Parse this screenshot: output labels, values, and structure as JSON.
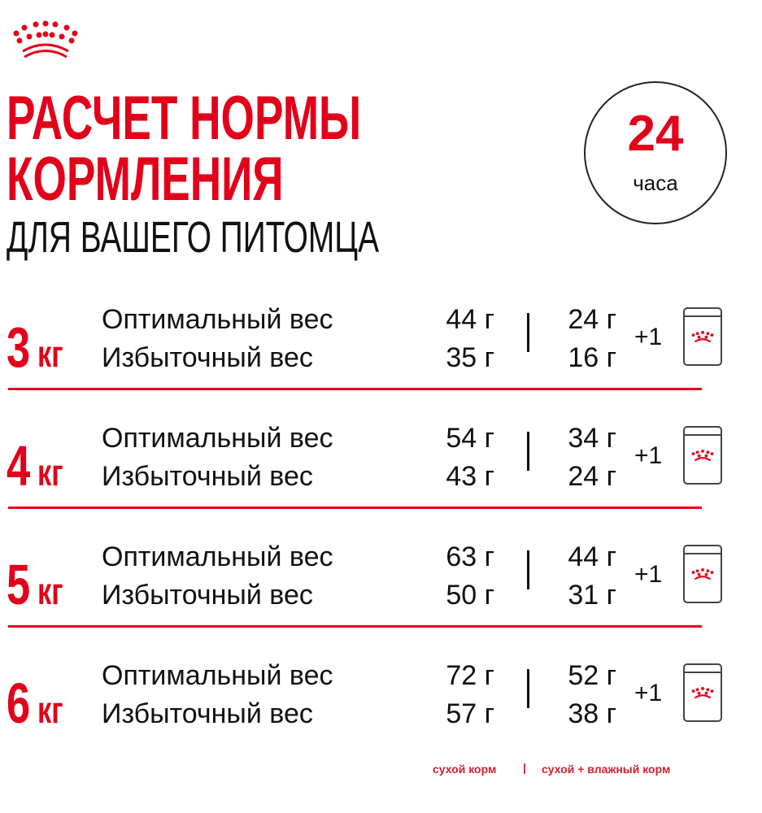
{
  "brand": {
    "logo": "crown-logo",
    "color": "#e2001a"
  },
  "header": {
    "title_line1": "РАСЧЕТ НОРМЫ",
    "title_line2": "КОРМЛЕНИЯ",
    "subtitle": "ДЛЯ ВАШЕГО ПИТОМЦА"
  },
  "badge": {
    "number": "24",
    "unit": "часа"
  },
  "rows": [
    {
      "weight": "3",
      "unit": "кг",
      "optimal_label": "Оптимальный вес",
      "overweight_label": "Избыточный вес",
      "dry_optimal": "44 г",
      "dry_over": "35 г",
      "mix_optimal": "24 г",
      "mix_over": "16 г",
      "plus": "+1"
    },
    {
      "weight": "4",
      "unit": "кг",
      "optimal_label": "Оптимальный вес",
      "overweight_label": "Избыточный вес",
      "dry_optimal": "54 г",
      "dry_over": "43 г",
      "mix_optimal": "34 г",
      "mix_over": "24 г",
      "plus": "+1"
    },
    {
      "weight": "5",
      "unit": "кг",
      "optimal_label": "Оптимальный вес",
      "overweight_label": "Избыточный вес",
      "dry_optimal": "63 г",
      "dry_over": "50 г",
      "mix_optimal": "44 г",
      "mix_over": "31 г",
      "plus": "+1"
    },
    {
      "weight": "6",
      "unit": "кг",
      "optimal_label": "Оптимальный вес",
      "overweight_label": "Избыточный вес",
      "dry_optimal": "72 г",
      "dry_over": "57 г",
      "mix_optimal": "52 г",
      "mix_over": "38 г",
      "plus": "+1"
    }
  ],
  "legend": {
    "dry": "сухой корм",
    "separator": "|",
    "mixed": "сухой + влажный корм"
  }
}
